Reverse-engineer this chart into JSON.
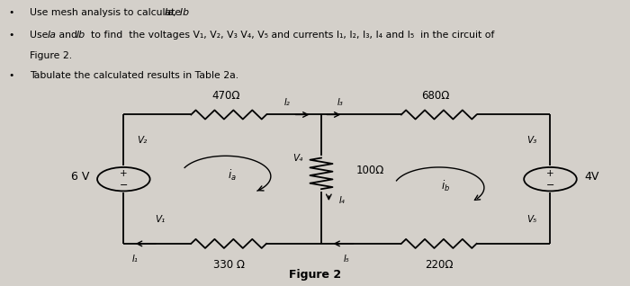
{
  "background_color": "#d4d0ca",
  "figure_label": "Figure 2",
  "bullet1": "Use mesh analysis to calculate ia, ib",
  "bullet2a": "Use ia and ib  to find  the voltages V1, V2, V3 V4, V5 and currents I1, I2, I3, I4 and I5  in the circuit of",
  "bullet2b": "Figure 2.",
  "bullet3": "Tabulate the calculated results in Table 2a.",
  "circuit": {
    "cL": 0.195,
    "cR": 0.875,
    "cT": 0.6,
    "cB": 0.145,
    "cMx": 0.51,
    "vsR": 0.042,
    "rW": 0.06,
    "rH_v": 0.11,
    "rW_v": 0.018
  }
}
